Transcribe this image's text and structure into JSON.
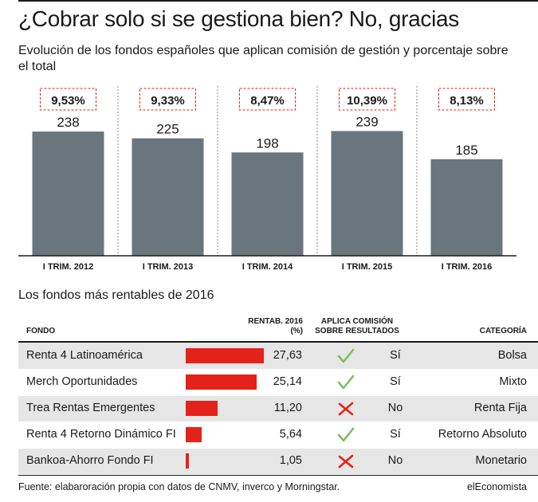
{
  "header": {
    "title": "¿Cobrar solo si se gestiona bien? No, gracias",
    "subtitle": "Evolución de los fondos españoles que aplican comisión de gestión y porcentaje sobre el total"
  },
  "chart_data": {
    "type": "bar",
    "categories": [
      "I TRIM. 2012",
      "I TRIM. 2013",
      "I TRIM. 2014",
      "I TRIM. 2015",
      "I TRIM. 2016"
    ],
    "values": [
      238,
      225,
      198,
      239,
      185
    ],
    "percent_labels": [
      "9,53%",
      "9,33%",
      "8,47%",
      "10,39%",
      "8,13%"
    ],
    "bar_color": "#69767e",
    "label_box_color": "#e32219",
    "grid": false
  },
  "table": {
    "title": "Los fondos más rentables de 2016",
    "headers": {
      "fondo": "FONDO",
      "rentab_line1": "RENTAB. 2016",
      "rentab_line2": "(%)",
      "comision_line1": "APLICA COMISIÓN",
      "comision_line2": "SOBRE RESULTADOS",
      "categoria": "CATEGORÍA"
    },
    "bar_color": "#e32219",
    "check_color": "#7cbf5f",
    "cross_color": "#e32219",
    "rows": [
      {
        "fondo": "Renta 4 Latinoamérica",
        "rentab": 27.63,
        "rentab_label": "27,63",
        "comision": "Sí",
        "icon": "check-icon",
        "categoria": "Bolsa"
      },
      {
        "fondo": "Merch Oportunidades",
        "rentab": 25.14,
        "rentab_label": "25,14",
        "comision": "Sí",
        "icon": "check-icon",
        "categoria": "Mixto"
      },
      {
        "fondo": "Trea Rentas Emergentes",
        "rentab": 11.2,
        "rentab_label": "11,20",
        "comision": "No",
        "icon": "cross-icon",
        "categoria": "Renta Fija"
      },
      {
        "fondo": "Renta 4 Retorno Dinámico FI",
        "rentab": 5.64,
        "rentab_label": "5,64",
        "comision": "Sí",
        "icon": "check-icon",
        "categoria": "Retorno Absoluto"
      },
      {
        "fondo": "Bankoa-Ahorro Fondo FI",
        "rentab": 1.05,
        "rentab_label": "1,05",
        "comision": "No",
        "icon": "cross-icon",
        "categoria": "Monetario"
      }
    ]
  },
  "footer": {
    "source": "Fuente: elabaroración propia con datos de CNMV, inverco y Morningstar.",
    "brand": "elEconomista"
  }
}
